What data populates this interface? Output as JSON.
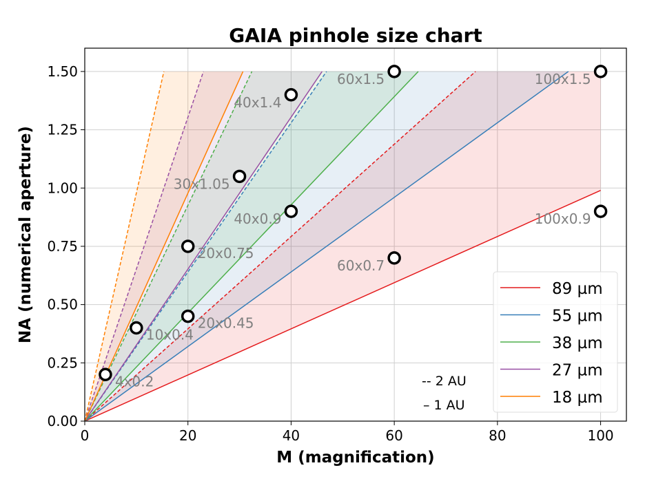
{
  "chart_data": {
    "type": "line",
    "title": "GAIA pinhole size chart",
    "xlabel": "M (magnification)",
    "ylabel": "NA (numerical aperture)",
    "xlim": [
      0,
      105
    ],
    "ylim": [
      0,
      1.6
    ],
    "xticks": [
      0,
      20,
      40,
      60,
      80,
      100
    ],
    "xtick_labels": [
      "0",
      "20",
      "40",
      "60",
      "80",
      "100"
    ],
    "yticks": [
      0,
      0.25,
      0.5,
      0.75,
      1.0,
      1.25,
      1.5
    ],
    "ytick_labels": [
      "0.00",
      "0.25",
      "0.50",
      "0.75",
      "1.00",
      "1.25",
      "1.50"
    ],
    "grid": true,
    "legend_position": "bottom-right",
    "series": [
      {
        "name": "89 µm",
        "color": "#e41a1c",
        "slope_1AU": 0.0099,
        "slope_2AU": 0.0198
      },
      {
        "name": "55 µm",
        "color": "#377eb8",
        "slope_1AU": 0.016,
        "slope_2AU": 0.032
      },
      {
        "name": "38 µm",
        "color": "#4daf4a",
        "slope_1AU": 0.0232,
        "slope_2AU": 0.0463
      },
      {
        "name": "27 µm",
        "color": "#984ea3",
        "slope_1AU": 0.0326,
        "slope_2AU": 0.0652
      },
      {
        "name": "18 µm",
        "color": "#ff7f00",
        "slope_1AU": 0.0489,
        "slope_2AU": 0.0978
      }
    ],
    "na_cap": 1.5,
    "m_max": 100,
    "annotations": [
      "-- 2 AU",
      "– 1 AU"
    ],
    "points": [
      {
        "M": 4,
        "NA": 0.2,
        "label": "4x0.2",
        "side": "right"
      },
      {
        "M": 10,
        "NA": 0.4,
        "label": "10x0.4",
        "side": "right"
      },
      {
        "M": 20,
        "NA": 0.45,
        "label": "20x0.45",
        "side": "right"
      },
      {
        "M": 20,
        "NA": 0.75,
        "label": "20x0.75",
        "side": "right"
      },
      {
        "M": 30,
        "NA": 1.05,
        "label": "30x1.05",
        "side": "left"
      },
      {
        "M": 40,
        "NA": 0.9,
        "label": "40x0.9",
        "side": "left"
      },
      {
        "M": 40,
        "NA": 1.4,
        "label": "40x1.4",
        "side": "left"
      },
      {
        "M": 60,
        "NA": 0.7,
        "label": "60x0.7",
        "side": "left"
      },
      {
        "M": 60,
        "NA": 1.5,
        "label": "60x1.5",
        "side": "left"
      },
      {
        "M": 100,
        "NA": 0.9,
        "label": "100x0.9",
        "side": "left"
      },
      {
        "M": 100,
        "NA": 1.5,
        "label": "100x1.5",
        "side": "left"
      }
    ]
  }
}
